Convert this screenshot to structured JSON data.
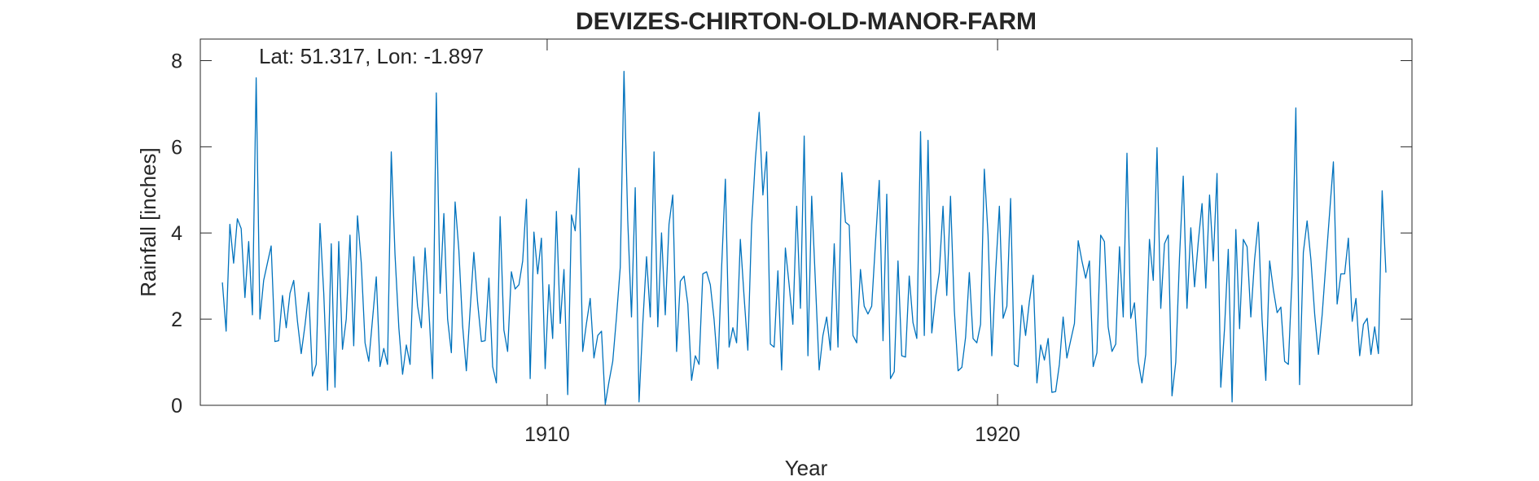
{
  "chart_data": {
    "type": "line",
    "title": "DEVIZES-CHIRTON-OLD-MANOR-FARM",
    "annotation": "Lat: 51.317, Lon: -1.897",
    "xlabel": "Year",
    "ylabel": "Rainfall [inches]",
    "xlim": [
      1902.3,
      1929.2
    ],
    "ylim": [
      0,
      8.5
    ],
    "xticks": [
      1910,
      1920
    ],
    "xtick_labels": [
      "1910",
      "1920"
    ],
    "yticks": [
      0,
      2,
      4,
      6,
      8
    ],
    "ytick_labels": [
      "0",
      "2",
      "4",
      "6",
      "8"
    ],
    "grid": false,
    "line_color": "#0072BD",
    "series": [
      {
        "x_start": 1902.79,
        "x_step": 0.08333,
        "values": [
          2.85,
          1.72,
          4.2,
          3.3,
          4.33,
          4.1,
          2.5,
          3.8,
          2.1,
          7.6,
          2.0,
          2.9,
          3.3,
          3.7,
          1.48,
          1.5,
          2.55,
          1.8,
          2.6,
          2.9,
          1.95,
          1.2,
          1.85,
          2.62,
          0.68,
          0.95,
          4.22,
          2.6,
          0.35,
          3.75,
          0.42,
          3.8,
          1.3,
          2.0,
          3.95,
          1.38,
          4.4,
          3.3,
          1.45,
          1.02,
          2.0,
          2.98,
          0.9,
          1.32,
          0.95,
          5.88,
          3.5,
          1.8,
          0.72,
          1.4,
          0.95,
          3.45,
          2.3,
          1.8,
          3.65,
          2.25,
          0.62,
          7.25,
          2.6,
          4.45,
          2.0,
          1.22,
          4.72,
          3.6,
          1.85,
          0.8,
          2.2,
          3.55,
          2.4,
          1.48,
          1.5,
          2.95,
          0.9,
          0.52,
          4.38,
          1.75,
          1.25,
          3.1,
          2.7,
          2.8,
          3.35,
          4.78,
          0.62,
          4.02,
          3.05,
          3.88,
          0.85,
          2.8,
          1.55,
          4.5,
          1.9,
          3.15,
          0.25,
          4.42,
          4.05,
          5.5,
          1.25,
          1.9,
          2.48,
          1.1,
          1.62,
          1.72,
          0.02,
          0.55,
          1.02,
          2.05,
          3.2,
          7.75,
          4.3,
          2.05,
          5.05,
          0.08,
          1.9,
          3.45,
          2.05,
          5.88,
          1.82,
          4.0,
          2.1,
          4.2,
          4.88,
          1.25,
          2.88,
          3.0,
          2.35,
          0.58,
          1.15,
          0.95,
          3.05,
          3.1,
          2.8,
          2.0,
          0.85,
          3.2,
          5.25,
          1.35,
          1.8,
          1.45,
          3.85,
          2.52,
          1.28,
          4.18,
          5.72,
          6.8,
          4.88,
          5.88,
          1.42,
          1.35,
          3.12,
          0.82,
          3.65,
          2.8,
          1.88,
          4.62,
          2.25,
          6.25,
          1.15,
          4.85,
          2.85,
          0.82,
          1.62,
          2.05,
          1.28,
          3.75,
          1.35,
          5.4,
          4.25,
          4.18,
          1.62,
          1.45,
          3.15,
          2.3,
          2.12,
          2.3,
          3.8,
          5.22,
          1.5,
          4.9,
          0.62,
          0.78,
          3.35,
          1.15,
          1.12,
          3.0,
          1.92,
          1.55,
          6.35,
          1.62,
          6.15,
          1.68,
          2.5,
          3.08,
          4.62,
          2.55,
          4.85,
          2.2,
          0.8,
          0.88,
          1.58,
          3.08,
          1.55,
          1.45,
          1.88,
          5.48,
          3.95,
          1.15,
          3.1,
          4.62,
          2.02,
          2.3,
          4.8,
          0.95,
          0.9,
          2.32,
          1.62,
          2.4,
          3.02,
          0.52,
          1.4,
          1.05,
          1.55,
          0.3,
          0.32,
          0.95,
          2.05,
          1.1,
          1.5,
          1.9,
          3.82,
          3.35,
          2.95,
          3.35,
          0.9,
          1.22,
          3.95,
          3.8,
          1.82,
          1.25,
          1.42,
          3.68,
          2.05,
          5.85,
          2.02,
          2.38,
          1.02,
          0.52,
          1.18,
          3.85,
          2.9,
          5.98,
          2.25,
          3.75,
          3.95,
          0.22,
          1.0,
          3.42,
          5.32,
          2.25,
          4.12,
          2.75,
          3.8,
          4.68,
          2.72,
          4.88,
          3.35,
          5.38,
          0.42,
          1.78,
          3.62,
          0.08,
          4.08,
          1.78,
          3.85,
          3.68,
          2.05,
          3.38,
          4.25,
          2.0,
          0.58,
          3.35,
          2.68,
          2.15,
          2.28,
          1.02,
          0.95,
          3.02,
          6.9,
          0.48,
          3.55,
          4.28,
          3.38,
          2.12,
          1.18,
          2.1,
          3.3,
          4.48,
          5.65,
          2.35,
          3.05,
          3.05,
          3.88,
          1.95,
          2.48,
          1.15,
          1.88,
          2.02,
          1.18,
          1.82,
          1.2,
          4.98,
          3.08
        ]
      }
    ]
  }
}
